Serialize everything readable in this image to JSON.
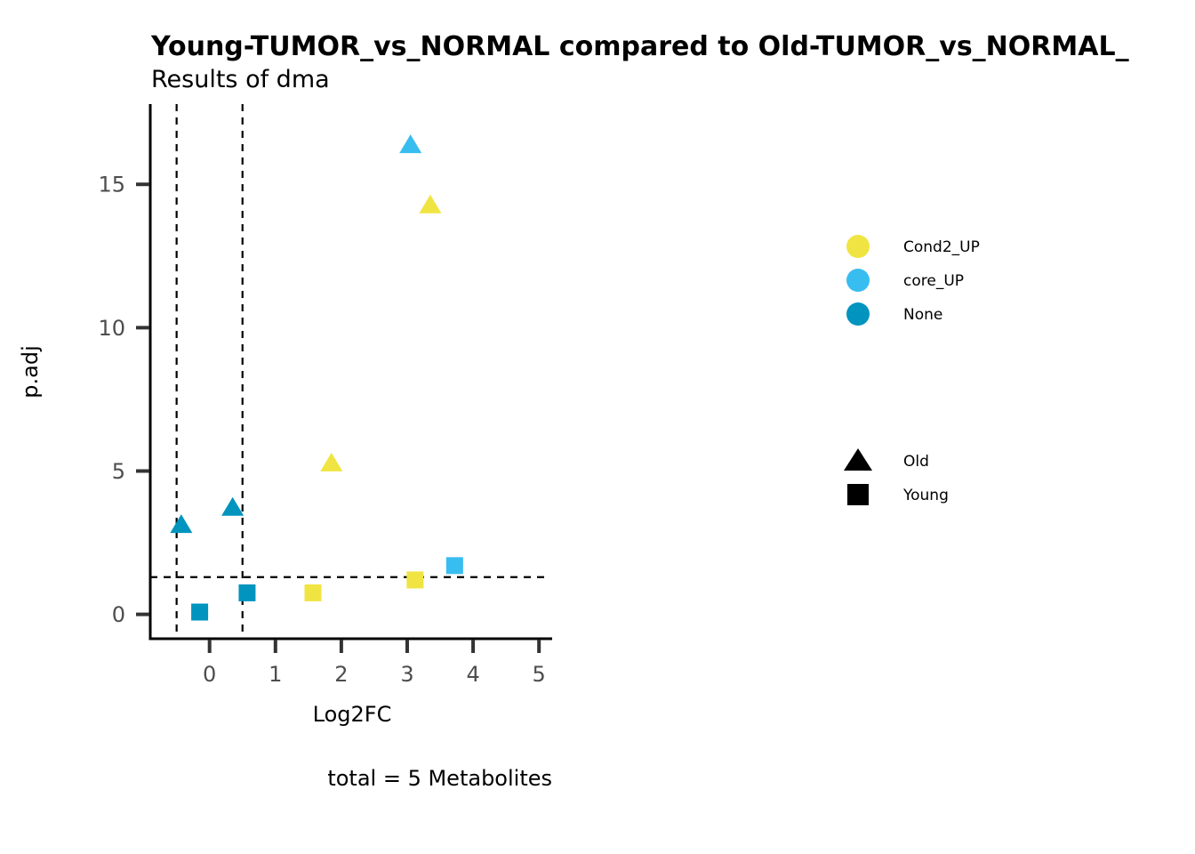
{
  "chart_data": {
    "type": "scatter",
    "title": "Young-TUMOR_vs_NORMAL compared to Old-TUMOR_vs_NORMAL_",
    "subtitle": "Results of dma",
    "xlabel": "Log2FC",
    "ylabel": "p.adj",
    "caption": "total = 5 Metabolites",
    "xlim": [
      -0.9,
      5.2
    ],
    "ylim": [
      -0.85,
      17.8
    ],
    "x_ticks": [
      0,
      1,
      2,
      3,
      4,
      5
    ],
    "y_ticks": [
      0,
      5,
      10,
      15
    ],
    "thresholds": {
      "vlines": [
        -0.5,
        0.5
      ],
      "hline": 1.3
    },
    "grid": false,
    "legend_position": "right",
    "color_legend": [
      {
        "label": "Cond2_UP",
        "color": "#F0E442"
      },
      {
        "label": "core_UP",
        "color": "#38BDF0"
      },
      {
        "label": "None",
        "color": "#0094BE"
      }
    ],
    "shape_legend": [
      {
        "label": "Old",
        "shape": "triangle"
      },
      {
        "label": "Young",
        "shape": "square"
      }
    ],
    "points": [
      {
        "x": 3.05,
        "y": 16.4,
        "color_group": "core_UP",
        "shape_group": "Old"
      },
      {
        "x": 3.35,
        "y": 14.3,
        "color_group": "Cond2_UP",
        "shape_group": "Old"
      },
      {
        "x": 1.85,
        "y": 5.3,
        "color_group": "Cond2_UP",
        "shape_group": "Old"
      },
      {
        "x": 0.35,
        "y": 3.75,
        "color_group": "None",
        "shape_group": "Old"
      },
      {
        "x": -0.43,
        "y": 3.15,
        "color_group": "None",
        "shape_group": "Old"
      },
      {
        "x": 3.72,
        "y": 1.7,
        "color_group": "core_UP",
        "shape_group": "Young"
      },
      {
        "x": 3.12,
        "y": 1.2,
        "color_group": "Cond2_UP",
        "shape_group": "Young"
      },
      {
        "x": 1.57,
        "y": 0.75,
        "color_group": "Cond2_UP",
        "shape_group": "Young"
      },
      {
        "x": 0.57,
        "y": 0.75,
        "color_group": "None",
        "shape_group": "Young"
      },
      {
        "x": -0.15,
        "y": 0.08,
        "color_group": "None",
        "shape_group": "Young"
      }
    ]
  }
}
